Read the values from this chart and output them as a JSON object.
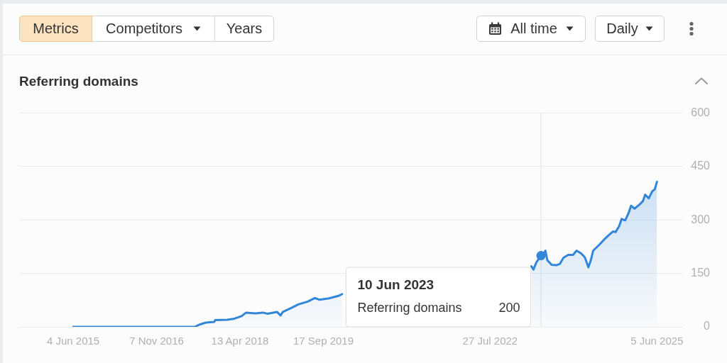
{
  "chart_data": {
    "type": "area",
    "title": "Referring domains",
    "annotations": [
      "Metrics",
      "Competitors",
      "Years",
      "All time",
      "Daily",
      "10 Jun 2023",
      "Referring domains",
      "200"
    ],
    "x": [
      "2015-06-04",
      "2017-07-03",
      "2017-08-07",
      "2017-09-12",
      "2017-11-03",
      "2017-11-09",
      "2018-01-24",
      "2018-03-09",
      "2018-04-23",
      "2018-05-22",
      "2018-07-20",
      "2018-09-03",
      "2018-10-03",
      "2018-12-01",
      "2018-12-23",
      "2019-01-07",
      "2019-02-28",
      "2019-04-13",
      "2019-06-11",
      "2019-07-26",
      "2019-08-25",
      "2019-10-23",
      "2019-12-21",
      "2020-01-12",
      "2021-09-01",
      "2023-04-11",
      "2023-04-24",
      "2023-05-12",
      "2023-06-10",
      "2023-07-03",
      "2023-07-08",
      "2023-07-20",
      "2023-08-16",
      "2023-09-15",
      "2023-10-07",
      "2023-10-29",
      "2023-11-28",
      "2023-12-28",
      "2024-01-19",
      "2024-02-17",
      "2024-03-11",
      "2024-04-02",
      "2024-04-17",
      "2024-05-02",
      "2024-06-08",
      "2024-07-07",
      "2024-08-06",
      "2024-09-04",
      "2024-09-19",
      "2024-10-12",
      "2024-10-27",
      "2024-11-18",
      "2024-12-10",
      "2024-12-25",
      "2025-01-16",
      "2025-02-15",
      "2025-03-09",
      "2025-03-23",
      "2025-04-15",
      "2025-05-07",
      "2025-05-22",
      "2025-05-28",
      "2025-06-05"
    ],
    "series": [
      {
        "color": "#3186d8",
        "values": [
          0,
          0,
          7,
          12,
          14,
          19,
          20,
          23,
          30,
          40,
          38,
          40,
          37,
          42,
          32,
          42,
          53,
          63,
          71,
          81,
          76,
          80,
          87,
          92,
          null,
          170,
          161,
          181,
          200,
          210,
          214,
          187,
          174,
          173,
          177,
          194,
          202,
          202,
          214,
          206,
          195,
          167,
          187,
          214,
          230,
          244,
          257,
          268,
          266,
          283,
          303,
          299,
          320,
          340,
          332,
          343,
          353,
          371,
          361,
          381,
          386,
          395,
          407
        ]
      },
      {
        "type": "scatter",
        "x": [
          "2023-06-10"
        ],
        "values": [
          200
        ],
        "color": "#3186d8",
        "marker": "circle"
      }
    ],
    "xlim": [
      "2014-07-01",
      "2025-11-15"
    ],
    "xticks": [
      {
        "value": "2015-06-04",
        "label": "4 Jun 2015"
      },
      {
        "value": "2016-11-07",
        "label": "7 Nov 2016"
      },
      {
        "value": "2018-04-13",
        "label": "13 Apr 2018"
      },
      {
        "value": "2019-09-17",
        "label": "17 Sep 2019"
      },
      {
        "value": "2022-07-27",
        "label": "27 Jul 2022"
      },
      {
        "value": "2025-06-05",
        "label": "5 Jun 2025"
      }
    ],
    "ylim": [
      0,
      600
    ],
    "yticks": [
      0,
      150,
      300,
      450,
      600
    ],
    "grid": "y",
    "ref_lines": [
      {
        "axis": "x",
        "value": "2023-06-10",
        "color": "#e2e2e2"
      }
    ]
  }
}
